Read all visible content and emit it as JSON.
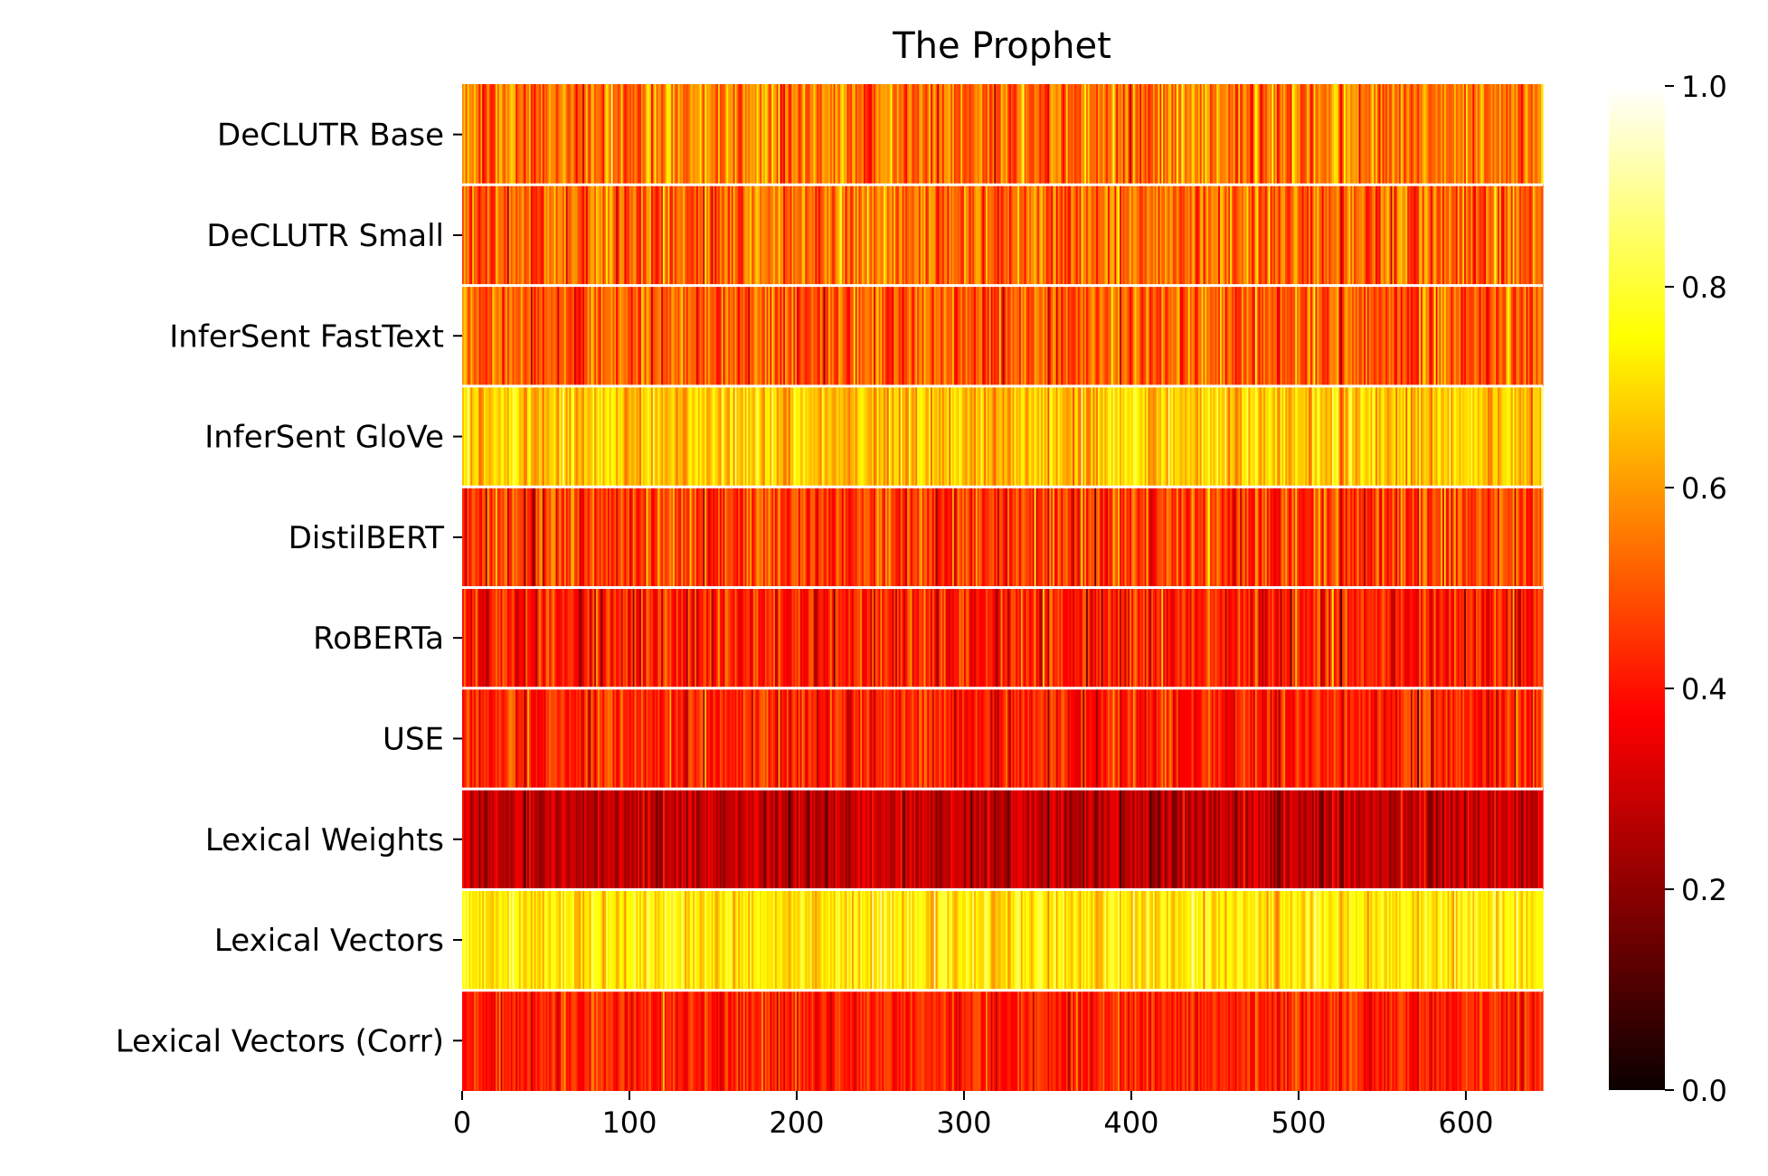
{
  "chart_data": {
    "type": "heatmap",
    "title": "The Prophet",
    "xlabel": "",
    "ylabel": "",
    "colormap": "hot",
    "rows": [
      {
        "name": "DeCLUTR Base",
        "mean": 0.54,
        "spread": 0.13
      },
      {
        "name": "DeCLUTR Small",
        "mean": 0.52,
        "spread": 0.13
      },
      {
        "name": "InferSent FastText",
        "mean": 0.5,
        "spread": 0.12
      },
      {
        "name": "InferSent GloVe",
        "mean": 0.66,
        "spread": 0.1
      },
      {
        "name": "DistilBERT",
        "mean": 0.46,
        "spread": 0.13
      },
      {
        "name": "RoBERTa",
        "mean": 0.4,
        "spread": 0.12
      },
      {
        "name": "USE",
        "mean": 0.41,
        "spread": 0.11
      },
      {
        "name": "Lexical Weights",
        "mean": 0.26,
        "spread": 0.09
      },
      {
        "name": "Lexical Vectors",
        "mean": 0.72,
        "spread": 0.09
      },
      {
        "name": "Lexical Vectors (Corr)",
        "mean": 0.41,
        "spread": 0.09
      }
    ],
    "n_columns": 646,
    "xlim": [
      0,
      646
    ],
    "x_ticks": [
      "0",
      "100",
      "200",
      "300",
      "400",
      "500",
      "600"
    ],
    "colorbar": {
      "vmin": 0.0,
      "vmax": 1.0,
      "ticks": [
        "0.0",
        "0.2",
        "0.4",
        "0.6",
        "0.8",
        "1.0"
      ]
    },
    "grid": false,
    "legend": "colorbar-right"
  }
}
